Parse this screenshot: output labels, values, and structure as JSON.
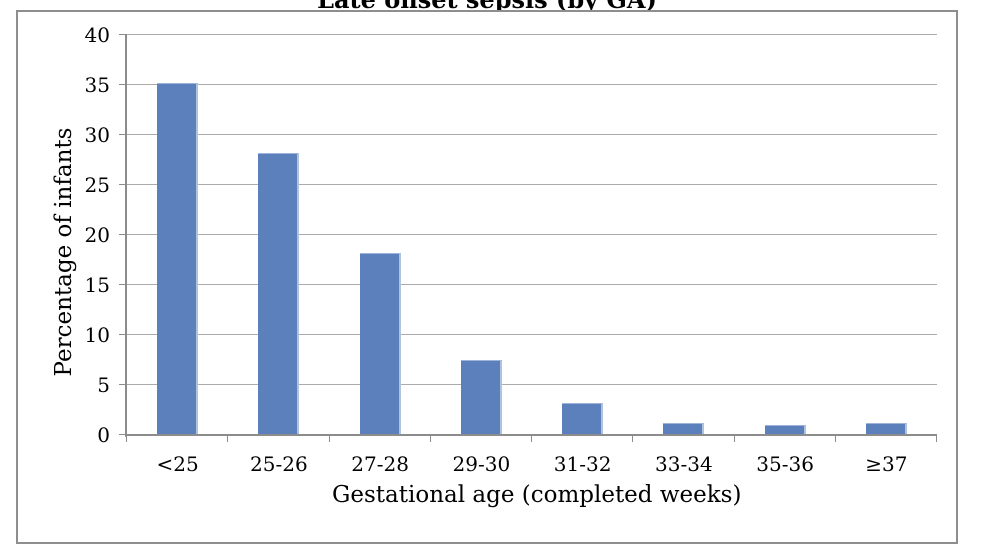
{
  "title": "Late onset sepsis (by GA)",
  "chart_data": {
    "type": "bar",
    "title": "Late onset sepsis (by GA)",
    "categories": [
      "<25",
      "25-26",
      "27-28",
      "29-30",
      "31-32",
      "33-34",
      "35-36",
      "≥37"
    ],
    "values": [
      35.2,
      28.2,
      18.2,
      7.5,
      3.2,
      1.2,
      1.0,
      1.2
    ],
    "xlabel": "Gestational age (completed weeks)",
    "ylabel": "Percentage of infants",
    "ylim": [
      0,
      40
    ],
    "yticks": [
      0,
      5,
      10,
      15,
      20,
      25,
      30,
      35,
      40
    ],
    "grid": true,
    "legend": "none",
    "bar_color": "#5B80BC",
    "bar_edge_color": "#AFC2DE",
    "bar_top_edge_color": "#9DB3D8",
    "gridline_color": "#ABABAB",
    "axis_color": "#8C8C8C",
    "border_color": "#8E8E8E"
  }
}
